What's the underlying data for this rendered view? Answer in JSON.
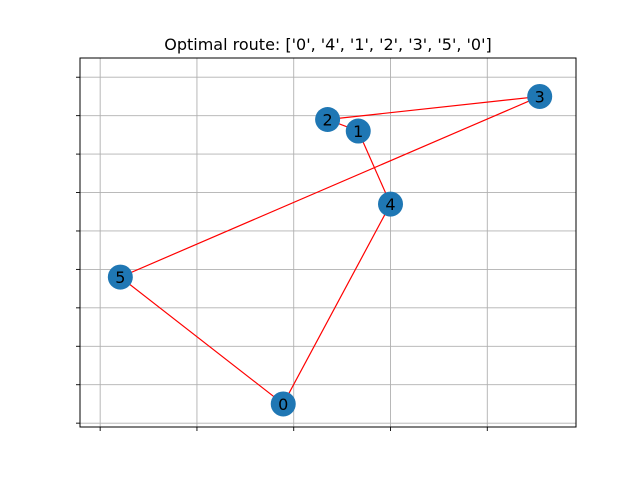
{
  "chart_data": {
    "type": "scatter",
    "title": "Optimal route: ['0', '4', '1', '2', '3', '5', '0']",
    "xlabel": "",
    "ylabel": "",
    "xlim": [
      -0.25,
      5.9
    ],
    "ylim": [
      -0.8,
      8.8
    ],
    "grid": true,
    "show_tick_labels": false,
    "grid_x": [
      0,
      1.2,
      2.4,
      3.6,
      4.8
    ],
    "grid_y": [
      -0.7,
      0.3,
      1.3,
      2.3,
      3.3,
      4.3,
      5.3,
      6.3,
      7.3,
      8.3
    ],
    "node_color": "#1f77b4",
    "edge_color": "#ff0000",
    "nodes": [
      {
        "id": "0",
        "x": 2.27,
        "y": -0.2
      },
      {
        "id": "1",
        "x": 3.2,
        "y": 6.9
      },
      {
        "id": "2",
        "x": 2.82,
        "y": 7.2
      },
      {
        "id": "3",
        "x": 5.45,
        "y": 7.8
      },
      {
        "id": "4",
        "x": 3.6,
        "y": 5.0
      },
      {
        "id": "5",
        "x": 0.25,
        "y": 3.1
      }
    ],
    "route": [
      "0",
      "4",
      "1",
      "2",
      "3",
      "5",
      "0"
    ]
  }
}
